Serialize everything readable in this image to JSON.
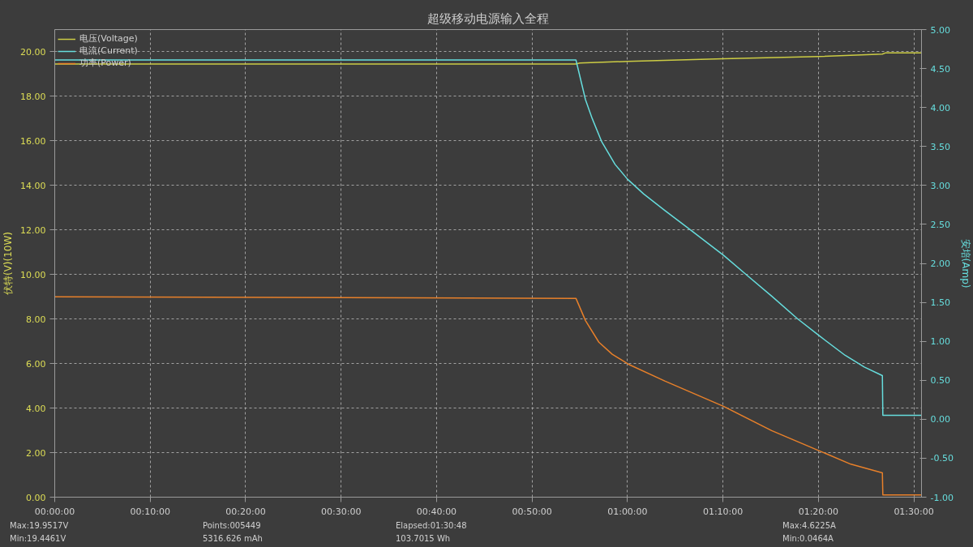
{
  "chart_data": {
    "type": "line",
    "title": "超级移动电源输入全程",
    "ylabel": "伏特(V)(10W)",
    "y2label": "安培(Amp)",
    "xlim": [
      0,
      90.8
    ],
    "ylim": [
      0,
      21
    ],
    "y2lim": [
      -1,
      5
    ],
    "xticks": [
      {
        "value": 0,
        "label": "00:00:00"
      },
      {
        "value": 10,
        "label": "00:10:00"
      },
      {
        "value": 20,
        "label": "00:20:00"
      },
      {
        "value": 30,
        "label": "00:30:00"
      },
      {
        "value": 40,
        "label": "00:40:00"
      },
      {
        "value": 50,
        "label": "00:50:00"
      },
      {
        "value": 60,
        "label": "01:00:00"
      },
      {
        "value": 70,
        "label": "01:10:00"
      },
      {
        "value": 80,
        "label": "01:20:00"
      },
      {
        "value": 90,
        "label": "01:30:00"
      }
    ],
    "yticks": [
      {
        "value": 0,
        "label": "0.00"
      },
      {
        "value": 2,
        "label": "2.00"
      },
      {
        "value": 4,
        "label": "4.00"
      },
      {
        "value": 6,
        "label": "6.00"
      },
      {
        "value": 8,
        "label": "8.00"
      },
      {
        "value": 10,
        "label": "10.00"
      },
      {
        "value": 12,
        "label": "12.00"
      },
      {
        "value": 14,
        "label": "14.00"
      },
      {
        "value": 16,
        "label": "16.00"
      },
      {
        "value": 18,
        "label": "18.00"
      },
      {
        "value": 20,
        "label": "20.00"
      }
    ],
    "y2ticks": [
      {
        "value": -1,
        "label": "-1.00"
      },
      {
        "value": -0.5,
        "label": "-0.50"
      },
      {
        "value": 0,
        "label": "0.00"
      },
      {
        "value": 0.5,
        "label": "0.50"
      },
      {
        "value": 1,
        "label": "1.00"
      },
      {
        "value": 1.5,
        "label": "1.50"
      },
      {
        "value": 2,
        "label": "2.00"
      },
      {
        "value": 2.5,
        "label": "2.50"
      },
      {
        "value": 3,
        "label": "3.00"
      },
      {
        "value": 3.5,
        "label": "3.50"
      },
      {
        "value": 4,
        "label": "4.00"
      },
      {
        "value": 4.5,
        "label": "4.50"
      },
      {
        "value": 5,
        "label": "5.00"
      }
    ],
    "grid": true,
    "legend": "top left",
    "line_style": "solid",
    "marker": "none",
    "series": [
      {
        "name": "电压(Voltage)",
        "color": "#cccc44",
        "x": [
          0,
          54.6,
          55.0,
          60.0,
          70.0,
          80.0,
          86.7,
          87.0,
          90.8
        ],
        "values": [
          19.45,
          19.45,
          19.5,
          19.57,
          19.69,
          19.79,
          19.9,
          19.95,
          19.95
        ]
      },
      {
        "name": "电流(Current)",
        "color": "#66dddd",
        "axis": "y2",
        "x": [
          0,
          54.6,
          55.6,
          56.3,
          57.3,
          58.7,
          60.0,
          61.7,
          63.9,
          66.7,
          70.1,
          72.3,
          75.1,
          77.8,
          80.1,
          82.8,
          84.8,
          86.7,
          86.75,
          90.8
        ],
        "values": [
          4.61,
          4.61,
          4.1,
          3.86,
          3.56,
          3.27,
          3.08,
          2.89,
          2.68,
          2.42,
          2.1,
          1.87,
          1.58,
          1.29,
          1.07,
          0.82,
          0.67,
          0.56,
          0.05,
          0.05
        ]
      },
      {
        "name": "功率(Power)",
        "color": "#e8802a",
        "x": [
          0,
          54.6,
          55.6,
          57.0,
          58.4,
          60.1,
          63.9,
          70.1,
          75.1,
          80.1,
          83.4,
          86.7,
          86.75,
          90.8
        ],
        "values": [
          9.0,
          8.93,
          7.93,
          6.96,
          6.42,
          5.97,
          5.22,
          4.07,
          2.99,
          2.08,
          1.48,
          1.09,
          0.1,
          0.1
        ]
      }
    ],
    "annotations": [
      "Max:19.9517V",
      "Min:19.4461V",
      "Points:005449",
      "5316.626 mAh",
      "Elapsed:01:30:48",
      "103.7015 Wh",
      "Max:4.6225A",
      "Min:0.0464A"
    ]
  }
}
